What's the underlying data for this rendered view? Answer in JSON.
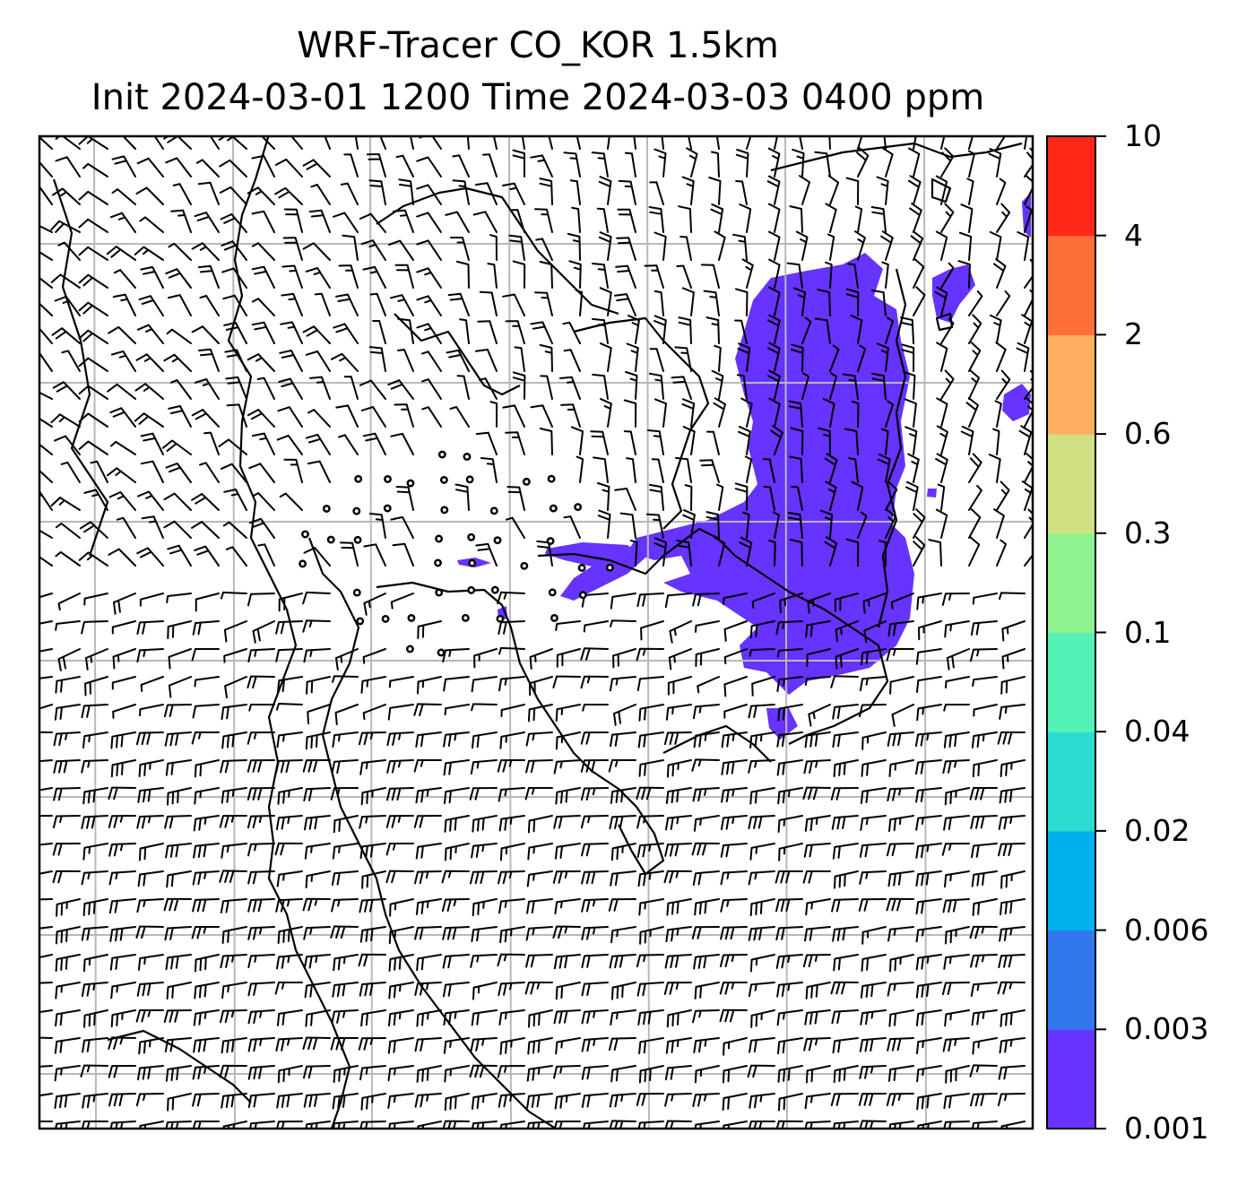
{
  "title": {
    "line1": "WRF-Tracer CO_KOR 1.5km",
    "line2": "Init 2024-03-01 1200 Time 2024-03-03 0400 ppm"
  },
  "map": {
    "projection_grid": "lat/lon gridlines",
    "overlays": [
      "coastlines",
      "country borders",
      "wind barbs",
      "tracer concentration shading"
    ],
    "plume_color": "#6633ff"
  },
  "colorbar": {
    "levels": [
      "0.001",
      "0.003",
      "0.006",
      "0.02",
      "0.04",
      "0.1",
      "0.3",
      "0.6",
      "2",
      "4",
      "10"
    ],
    "colors": [
      "#6633ff",
      "#3377ee",
      "#00b2ea",
      "#2ddcd0",
      "#55f2b8",
      "#8ef28e",
      "#cfe082",
      "#ffae60",
      "#ff7038",
      "#ff2818"
    ]
  }
}
